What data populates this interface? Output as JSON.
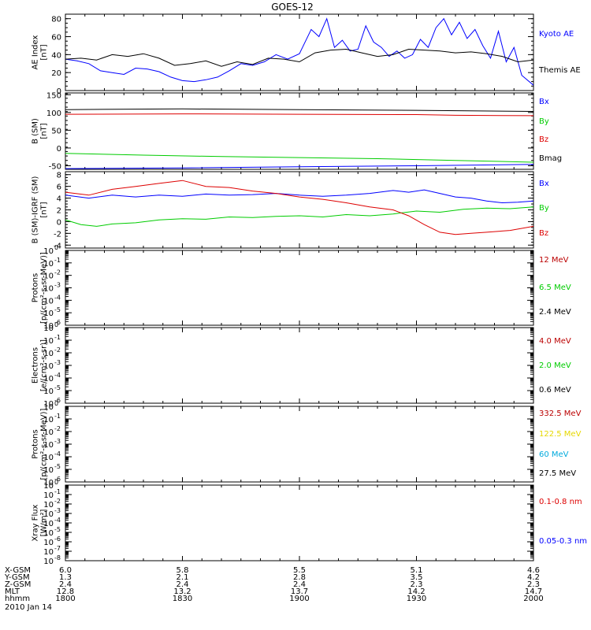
{
  "title": "GOES-12",
  "chart_data": [
    {
      "type": "line",
      "ylabel": "AE Index\n[nT]",
      "ylim": [
        0,
        85
      ],
      "yticks": [
        0,
        20,
        40,
        60,
        80
      ],
      "xlim": [
        0,
        120
      ],
      "grid": false,
      "legend_position": "right",
      "series": [
        {
          "name": "Kyoto AE",
          "color": "#0000ff",
          "x": [
            0,
            3,
            6,
            9,
            12,
            15,
            18,
            21,
            24,
            27,
            30,
            33,
            36,
            39,
            42,
            45,
            48,
            51,
            54,
            57,
            60,
            63,
            65,
            67,
            69,
            71,
            73,
            75,
            77,
            79,
            81,
            83,
            85,
            87,
            89,
            91,
            93,
            95,
            97,
            99,
            101,
            103,
            105,
            107,
            109,
            111,
            113,
            115,
            117,
            120
          ],
          "y": [
            35,
            33,
            30,
            22,
            20,
            18,
            25,
            24,
            21,
            15,
            11,
            10,
            12,
            15,
            22,
            30,
            28,
            32,
            40,
            35,
            41,
            68,
            60,
            80,
            48,
            56,
            44,
            46,
            72,
            54,
            48,
            38,
            44,
            36,
            40,
            57,
            48,
            70,
            80,
            62,
            76,
            58,
            68,
            50,
            36,
            66,
            32,
            48,
            17,
            6
          ]
        },
        {
          "name": "Themis AE",
          "color": "#000000",
          "x": [
            0,
            4,
            8,
            12,
            16,
            20,
            24,
            28,
            32,
            36,
            40,
            44,
            48,
            52,
            56,
            60,
            64,
            68,
            72,
            76,
            80,
            84,
            88,
            92,
            96,
            100,
            104,
            108,
            112,
            116,
            120
          ],
          "y": [
            35,
            36,
            34,
            40,
            38,
            41,
            36,
            28,
            30,
            33,
            27,
            32,
            29,
            36,
            35,
            32,
            42,
            45,
            46,
            42,
            38,
            40,
            46,
            45,
            44,
            42,
            43,
            41,
            38,
            32,
            34
          ]
        }
      ]
    },
    {
      "type": "line",
      "ylabel": "B (SM)\n[nT]",
      "ylim": [
        -60,
        155
      ],
      "yticks": [
        -50,
        0,
        50,
        100,
        150
      ],
      "xlim": [
        0,
        120
      ],
      "grid": false,
      "legend_position": "right",
      "series": [
        {
          "name": "Bx",
          "color": "#0000ff",
          "x": [
            0,
            30,
            60,
            90,
            120
          ],
          "y": [
            -58,
            -56,
            -53,
            -50,
            -46
          ]
        },
        {
          "name": "By",
          "color": "#00cc00",
          "x": [
            0,
            20,
            40,
            60,
            80,
            100,
            120
          ],
          "y": [
            -15,
            -20,
            -24,
            -27,
            -30,
            -35,
            -40
          ]
        },
        {
          "name": "Bz",
          "color": "#dd0000",
          "x": [
            0,
            30,
            60,
            90,
            100,
            120
          ],
          "y": [
            95,
            96,
            95,
            94,
            92,
            91
          ]
        },
        {
          "name": "Bmag",
          "color": "#000000",
          "x": [
            0,
            30,
            60,
            90,
            120
          ],
          "y": [
            108,
            110,
            108,
            106,
            103
          ]
        }
      ]
    },
    {
      "type": "line",
      "ylabel": "B (SM)-IGRF (SM)\n[nT]",
      "ylim": [
        -4.5,
        8.5
      ],
      "yticks": [
        -4,
        -2,
        0,
        2,
        4,
        6,
        8
      ],
      "xlim": [
        0,
        120
      ],
      "grid": false,
      "legend_position": "right",
      "series": [
        {
          "name": "Bx",
          "color": "#0000ff",
          "x": [
            0,
            6,
            12,
            18,
            24,
            30,
            36,
            42,
            48,
            54,
            60,
            66,
            72,
            78,
            84,
            88,
            92,
            96,
            100,
            104,
            108,
            112,
            116,
            120
          ],
          "y": [
            4.5,
            4.0,
            4.5,
            4.2,
            4.5,
            4.3,
            4.7,
            4.5,
            4.6,
            4.8,
            4.5,
            4.3,
            4.5,
            4.8,
            5.3,
            5.0,
            5.4,
            4.8,
            4.2,
            4.0,
            3.5,
            3.2,
            3.3,
            3.5
          ]
        },
        {
          "name": "By",
          "color": "#00cc00",
          "x": [
            0,
            4,
            8,
            12,
            18,
            24,
            30,
            36,
            42,
            48,
            54,
            60,
            66,
            72,
            78,
            84,
            90,
            96,
            102,
            108,
            114,
            120
          ],
          "y": [
            0.3,
            -0.5,
            -0.8,
            -0.4,
            -0.2,
            0.3,
            0.5,
            0.4,
            0.8,
            0.7,
            0.9,
            1.0,
            0.8,
            1.2,
            1.0,
            1.3,
            1.8,
            1.6,
            2.1,
            2.3,
            2.2,
            2.5
          ]
        },
        {
          "name": "Bz",
          "color": "#dd0000",
          "x": [
            0,
            6,
            12,
            18,
            24,
            30,
            36,
            42,
            48,
            54,
            60,
            66,
            72,
            78,
            84,
            88,
            92,
            96,
            100,
            104,
            108,
            114,
            120
          ],
          "y": [
            5.0,
            4.5,
            5.5,
            6.0,
            6.5,
            7.0,
            6.0,
            5.8,
            5.2,
            4.8,
            4.2,
            3.8,
            3.2,
            2.5,
            2.0,
            1.0,
            -0.5,
            -1.8,
            -2.2,
            -2.0,
            -1.8,
            -1.5,
            -0.8
          ]
        }
      ]
    },
    {
      "type": "line",
      "ylabel": "Protons\n[p/(cm²-s-sr-MeV)]",
      "ylog": true,
      "ylim": [
        "1e-6",
        "1e0"
      ],
      "ytick_labels": [
        [
          "10",
          "0"
        ],
        [
          "10",
          "-1"
        ],
        [
          "10",
          "-2"
        ],
        [
          "10",
          "-3"
        ],
        [
          "10",
          "-4"
        ],
        [
          "10",
          "-5"
        ],
        [
          "10",
          "-6"
        ]
      ],
      "xlim": [
        0,
        120
      ],
      "legend_position": "right",
      "series": [
        {
          "name": "12 MeV",
          "color": "#bb0000",
          "x": [],
          "y": []
        },
        {
          "name": "6.5 MeV",
          "color": "#00cc00",
          "x": [],
          "y": []
        },
        {
          "name": "2.4 MeV",
          "color": "#000000",
          "x": [],
          "y": []
        }
      ]
    },
    {
      "type": "line",
      "ylabel": "Electrons\n[e/(cm²-s-sr)]",
      "ylog": true,
      "ylim": [
        "1e-6",
        "1e0"
      ],
      "ytick_labels": [
        [
          "10",
          "0"
        ],
        [
          "10",
          "-1"
        ],
        [
          "10",
          "-2"
        ],
        [
          "10",
          "-3"
        ],
        [
          "10",
          "-4"
        ],
        [
          "10",
          "-5"
        ],
        [
          "10",
          "-6"
        ]
      ],
      "xlim": [
        0,
        120
      ],
      "legend_position": "right",
      "series": [
        {
          "name": "4.0 MeV",
          "color": "#bb0000",
          "x": [],
          "y": []
        },
        {
          "name": "2.0 MeV",
          "color": "#00cc00",
          "x": [],
          "y": []
        },
        {
          "name": "0.6 MeV",
          "color": "#000000",
          "x": [],
          "y": []
        }
      ]
    },
    {
      "type": "line",
      "ylabel": "Protons\n[p/(cm²-s-sr-MeV)]",
      "ylog": true,
      "ylim": [
        "1e-6",
        "1e0"
      ],
      "ytick_labels": [
        [
          "10",
          "0"
        ],
        [
          "10",
          "-1"
        ],
        [
          "10",
          "-2"
        ],
        [
          "10",
          "-3"
        ],
        [
          "10",
          "-4"
        ],
        [
          "10",
          "-5"
        ],
        [
          "10",
          "-6"
        ]
      ],
      "xlim": [
        0,
        120
      ],
      "legend_position": "right",
      "series": [
        {
          "name": "332.5 MeV",
          "color": "#bb0000",
          "x": [],
          "y": []
        },
        {
          "name": "122.5 MeV",
          "color": "#e6d800",
          "x": [],
          "y": []
        },
        {
          "name": "60 MeV",
          "color": "#00aadd",
          "x": [],
          "y": []
        },
        {
          "name": "27.5 MeV",
          "color": "#000000",
          "x": [],
          "y": []
        }
      ]
    },
    {
      "type": "line",
      "ylabel": "Xray Flux\n[W/m²]",
      "ylog": true,
      "ylim": [
        "1e-8",
        "1e0"
      ],
      "ytick_labels": [
        [
          "10",
          "0"
        ],
        [
          "10",
          "-1"
        ],
        [
          "10",
          "-2"
        ],
        [
          "10",
          "-3"
        ],
        [
          "10",
          "-4"
        ],
        [
          "10",
          "-5"
        ],
        [
          "10",
          "-6"
        ],
        [
          "10",
          "-7"
        ],
        [
          "10",
          "-8"
        ]
      ],
      "xlim": [
        0,
        120
      ],
      "legend_position": "right",
      "series": [
        {
          "name": "0.1-0.8 nm",
          "color": "#dd0000",
          "x": [],
          "y": []
        },
        {
          "name": "0.05-0.3 nm",
          "color": "#0000ff",
          "x": [],
          "y": []
        }
      ]
    }
  ],
  "x_axis": {
    "rows": [
      {
        "label": "X-GSM",
        "values": [
          "6.0",
          "5.8",
          "5.5",
          "5.1",
          "4.6"
        ]
      },
      {
        "label": "Y-GSM",
        "values": [
          "1.3",
          "2.1",
          "2.8",
          "3.5",
          "4.2"
        ]
      },
      {
        "label": "Z-GSM",
        "values": [
          "2.4",
          "2.4",
          "2.4",
          "2.3",
          "2.3"
        ]
      },
      {
        "label": "MLT",
        "values": [
          "12.8",
          "13.2",
          "13.7",
          "14.2",
          "14.7"
        ]
      },
      {
        "label": "hhmm",
        "values": [
          "1800",
          "1830",
          "1900",
          "1930",
          "2000"
        ]
      }
    ],
    "tick_minutes": [
      0,
      30,
      60,
      90,
      120
    ],
    "date": "2010 Jan 14"
  },
  "colors": {
    "axis": "#000000",
    "background": "#ffffff"
  }
}
